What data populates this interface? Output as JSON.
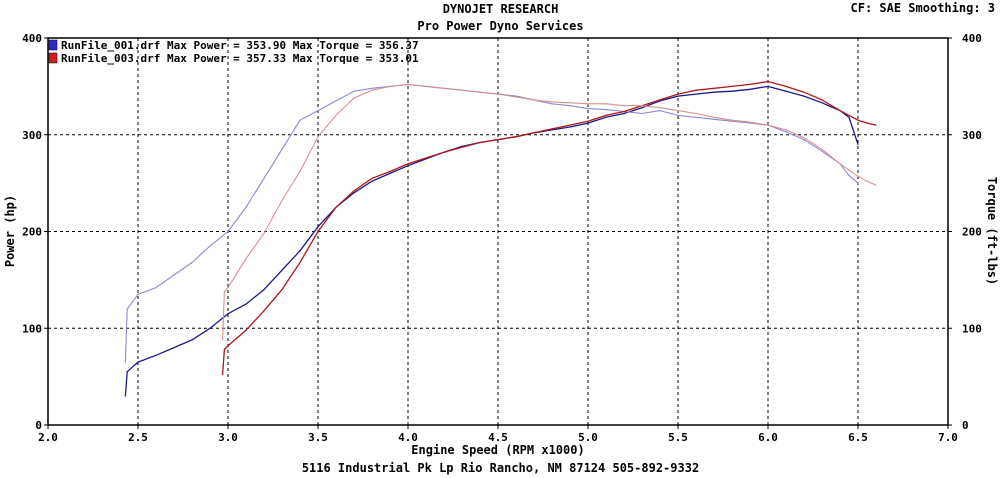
{
  "header": {
    "title": "DYNOJET RESEARCH",
    "subtitle": "Pro Power Dyno Services",
    "correction": "CF: SAE  Smoothing: 3"
  },
  "footer": {
    "address": "5116 Industrial Pk Lp Rio Rancho, NM  87124 505-892-9332"
  },
  "colors": {
    "run1": "#1a1a8c",
    "run1_torque": "#8a8ad0",
    "run3": "#b01818",
    "run3_torque": "#d89090",
    "grid": "#000000"
  },
  "chart_data": {
    "type": "line",
    "xlabel": "Engine Speed (RPM x1000)",
    "ylabel": "Power (hp)",
    "y2label": "Torque (ft-lbs)",
    "xlim": [
      2.0,
      7.0
    ],
    "ylim": [
      0,
      400
    ],
    "y2lim": [
      0,
      400
    ],
    "x_ticks": [
      "2.0",
      "2.5",
      "3.0",
      "3.5",
      "4.0",
      "4.5",
      "5.0",
      "5.5",
      "6.0",
      "6.5",
      "7.0"
    ],
    "y_ticks": [
      "0",
      "100",
      "200",
      "300",
      "400"
    ],
    "y2_ticks": [
      "0",
      "100",
      "200",
      "300",
      "400"
    ],
    "grid": true,
    "legend_position": "top-left",
    "legend": [
      {
        "text": "RunFile_001.drf Max Power = 353.90    Max Torque = 356.37",
        "color": "#2a2ad0"
      },
      {
        "text": "RunFile_003.drf Max Power = 357.33    Max Torque = 353.01",
        "color": "#d02020"
      }
    ],
    "series": [
      {
        "name": "RunFile_001.drf Power",
        "x": [
          2.43,
          2.44,
          2.5,
          2.6,
          2.7,
          2.8,
          2.9,
          3.0,
          3.1,
          3.2,
          3.3,
          3.4,
          3.5,
          3.6,
          3.7,
          3.8,
          3.9,
          4.0,
          4.1,
          4.2,
          4.3,
          4.4,
          4.5,
          4.6,
          4.7,
          4.8,
          4.9,
          5.0,
          5.1,
          5.2,
          5.3,
          5.4,
          5.5,
          5.6,
          5.7,
          5.8,
          5.9,
          6.0,
          6.1,
          6.2,
          6.3,
          6.4,
          6.45,
          6.5
        ],
        "y": [
          30,
          55,
          65,
          72,
          80,
          88,
          100,
          115,
          125,
          140,
          160,
          180,
          205,
          225,
          240,
          252,
          260,
          268,
          275,
          282,
          288,
          292,
          295,
          298,
          302,
          305,
          308,
          312,
          318,
          322,
          328,
          335,
          340,
          342,
          344,
          345,
          347,
          350,
          345,
          340,
          333,
          325,
          318,
          290
        ]
      },
      {
        "name": "RunFile_001.drf Torque",
        "x": [
          2.43,
          2.44,
          2.5,
          2.6,
          2.7,
          2.8,
          2.9,
          3.0,
          3.1,
          3.2,
          3.3,
          3.4,
          3.5,
          3.6,
          3.7,
          3.8,
          3.9,
          4.0,
          4.1,
          4.2,
          4.3,
          4.4,
          4.5,
          4.6,
          4.7,
          4.8,
          4.9,
          5.0,
          5.1,
          5.2,
          5.3,
          5.4,
          5.5,
          5.6,
          5.7,
          5.8,
          5.9,
          6.0,
          6.1,
          6.2,
          6.3,
          6.4,
          6.45,
          6.5
        ],
        "y": [
          65,
          120,
          135,
          142,
          155,
          168,
          185,
          200,
          225,
          255,
          285,
          315,
          325,
          335,
          345,
          348,
          350,
          352,
          350,
          348,
          346,
          344,
          342,
          340,
          336,
          332,
          330,
          327,
          326,
          324,
          322,
          325,
          320,
          318,
          316,
          314,
          312,
          310,
          303,
          295,
          283,
          270,
          258,
          250
        ]
      },
      {
        "name": "RunFile_003.drf Power",
        "x": [
          2.97,
          2.98,
          3.0,
          3.1,
          3.2,
          3.3,
          3.4,
          3.5,
          3.6,
          3.7,
          3.8,
          3.9,
          4.0,
          4.1,
          4.2,
          4.3,
          4.4,
          4.5,
          4.6,
          4.7,
          4.8,
          4.9,
          5.0,
          5.1,
          5.2,
          5.3,
          5.4,
          5.5,
          5.6,
          5.7,
          5.8,
          5.9,
          6.0,
          6.1,
          6.2,
          6.3,
          6.4,
          6.5,
          6.55,
          6.6
        ],
        "y": [
          52,
          78,
          82,
          98,
          118,
          140,
          168,
          200,
          225,
          242,
          255,
          262,
          270,
          276,
          282,
          287,
          292,
          295,
          298,
          302,
          306,
          310,
          314,
          320,
          324,
          330,
          336,
          342,
          346,
          348,
          350,
          352,
          355,
          350,
          344,
          336,
          325,
          315,
          312,
          310
        ]
      },
      {
        "name": "RunFile_003.drf Torque",
        "x": [
          2.97,
          2.98,
          3.0,
          3.1,
          3.2,
          3.3,
          3.4,
          3.5,
          3.6,
          3.7,
          3.8,
          3.9,
          4.0,
          4.1,
          4.2,
          4.3,
          4.4,
          4.5,
          4.6,
          4.7,
          4.8,
          4.9,
          5.0,
          5.1,
          5.2,
          5.3,
          5.4,
          5.5,
          5.6,
          5.7,
          5.8,
          5.9,
          6.0,
          6.1,
          6.2,
          6.3,
          6.4,
          6.5,
          6.55,
          6.6
        ],
        "y": [
          88,
          138,
          142,
          172,
          198,
          232,
          262,
          298,
          320,
          338,
          346,
          350,
          352,
          350,
          348,
          346,
          344,
          342,
          339,
          336,
          334,
          333,
          332,
          332,
          330,
          330,
          328,
          325,
          322,
          318,
          315,
          313,
          310,
          305,
          297,
          285,
          270,
          257,
          252,
          248
        ]
      }
    ]
  }
}
